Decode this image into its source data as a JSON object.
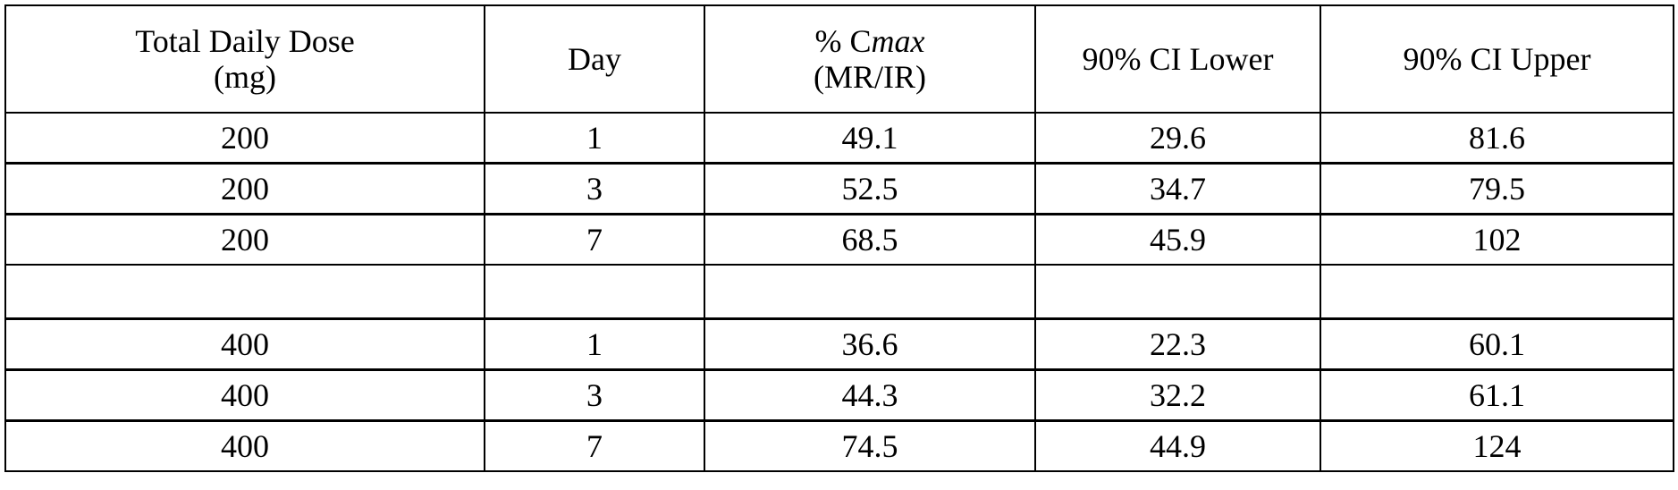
{
  "table": {
    "headers": [
      {
        "line1": "Total Daily Dose",
        "line2": "(mg)"
      },
      {
        "line1": "Day"
      },
      {
        "line1_prefix": "% C",
        "line1_italic": "max",
        "line2": "(MR/IR)"
      },
      {
        "line1": "90% CI Lower"
      },
      {
        "line1": "90% CI Upper"
      }
    ],
    "rows": [
      [
        "200",
        "1",
        "49.1",
        "29.6",
        "81.6"
      ],
      [
        "200",
        "3",
        "52.5",
        "34.7",
        "79.5"
      ],
      [
        "200",
        "7",
        "68.5",
        "45.9",
        "102"
      ],
      [
        "",
        "",
        "",
        "",
        ""
      ],
      [
        "400",
        "1",
        "36.6",
        "22.3",
        "60.1"
      ],
      [
        "400",
        "3",
        "44.3",
        "32.2",
        "61.1"
      ],
      [
        "400",
        "7",
        "74.5",
        "44.9",
        "124"
      ]
    ]
  }
}
